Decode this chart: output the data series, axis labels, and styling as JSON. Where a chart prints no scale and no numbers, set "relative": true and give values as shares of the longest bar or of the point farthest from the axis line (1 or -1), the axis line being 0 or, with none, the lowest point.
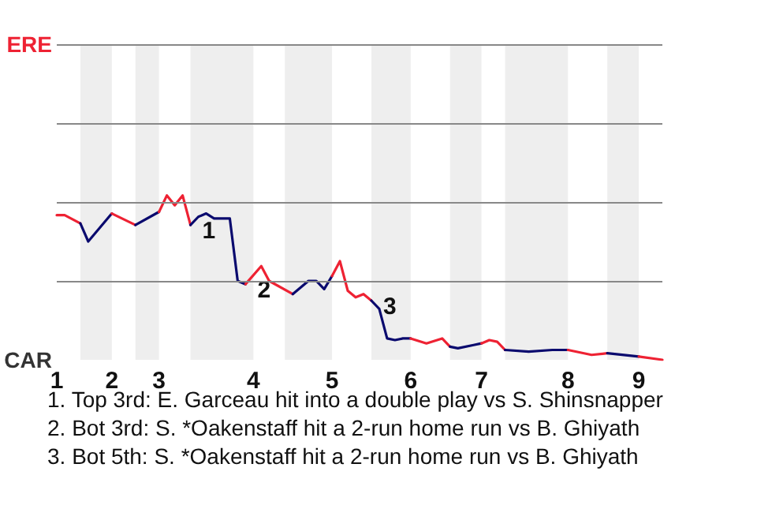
{
  "chart_data": {
    "type": "line",
    "relative": true,
    "categories": [
      "1",
      null,
      null,
      null,
      null,
      null,
      null,
      "2",
      null,
      null,
      null,
      null,
      null,
      "3",
      null,
      null,
      null,
      null,
      null,
      null,
      null,
      null,
      null,
      null,
      null,
      "4",
      null,
      null,
      null,
      null,
      null,
      null,
      null,
      null,
      null,
      "5",
      null,
      null,
      null,
      null,
      null,
      null,
      null,
      null,
      null,
      "6",
      null,
      null,
      null,
      null,
      null,
      null,
      null,
      null,
      "7",
      null,
      null,
      null,
      null,
      null,
      null,
      null,
      null,
      null,
      null,
      "8",
      null,
      null,
      null,
      null,
      null,
      null,
      null,
      null,
      "9",
      null,
      null,
      null
    ],
    "series": [
      {
        "color": "#ee2233",
        "values": [
          0.88,
          0.88,
          null,
          0.83,
          null,
          null,
          null,
          null,
          null,
          null,
          null,
          null,
          null,
          null,
          null,
          null,
          null,
          null,
          null,
          null,
          null,
          null,
          null,
          null,
          null,
          null,
          null,
          null,
          null,
          null,
          null,
          null,
          null,
          null,
          null,
          null,
          null,
          null,
          null,
          null,
          null,
          null,
          null,
          null,
          null,
          null,
          null,
          null,
          null,
          null,
          null,
          null,
          null,
          null,
          null,
          null,
          null,
          null,
          null,
          null,
          null,
          null,
          null,
          null,
          null,
          null,
          null,
          null,
          null,
          null,
          null,
          null,
          null,
          null,
          null,
          null,
          null,
          null
        ]
      },
      {
        "color": "#0a0a6e",
        "values": [
          null,
          null,
          null,
          0.83,
          0.72,
          null,
          null,
          0.89,
          null,
          null,
          null,
          null,
          null,
          null,
          null,
          null,
          null,
          null,
          null,
          null,
          null,
          null,
          null,
          null,
          null,
          null,
          null,
          null,
          null,
          null,
          null,
          null,
          null,
          null,
          null,
          null,
          null,
          null,
          null,
          null,
          null,
          null,
          null,
          null,
          null,
          null,
          null,
          null,
          null,
          null,
          null,
          null,
          null,
          null,
          null,
          null,
          null,
          null,
          null,
          null,
          null,
          null,
          null,
          null,
          null,
          null,
          null,
          null,
          null,
          null,
          null,
          null,
          null,
          null,
          null,
          null,
          null,
          null
        ]
      },
      {
        "color": "#ee2233",
        "values": [
          null,
          null,
          null,
          null,
          null,
          null,
          null,
          0.89,
          null,
          null,
          0.82,
          null,
          null,
          null,
          null,
          null,
          null,
          null,
          null,
          null,
          null,
          null,
          null,
          null,
          null,
          null,
          null,
          null,
          null,
          null,
          null,
          null,
          null,
          null,
          null,
          null,
          null,
          null,
          null,
          null,
          null,
          null,
          null,
          null,
          null,
          null,
          null,
          null,
          null,
          null,
          null,
          null,
          null,
          null,
          null,
          null,
          null,
          null,
          null,
          null,
          null,
          null,
          null,
          null,
          null,
          null,
          null,
          null,
          null,
          null,
          null,
          null,
          null,
          null,
          null,
          null,
          null,
          null
        ]
      },
      {
        "color": "#0a0a6e",
        "values": [
          null,
          null,
          null,
          null,
          null,
          null,
          null,
          null,
          null,
          null,
          0.82,
          null,
          null,
          0.9,
          null,
          null,
          null,
          null,
          null,
          null,
          null,
          null,
          null,
          null,
          null,
          null,
          null,
          null,
          null,
          null,
          null,
          null,
          null,
          null,
          null,
          null,
          null,
          null,
          null,
          null,
          null,
          null,
          null,
          null,
          null,
          null,
          null,
          null,
          null,
          null,
          null,
          null,
          null,
          null,
          null,
          null,
          null,
          null,
          null,
          null,
          null,
          null,
          null,
          null,
          null,
          null,
          null,
          null,
          null,
          null,
          null,
          null,
          null,
          null,
          null,
          null,
          null,
          null
        ]
      },
      {
        "color": "#ee2233",
        "values": [
          null,
          null,
          null,
          null,
          null,
          null,
          null,
          null,
          null,
          null,
          null,
          null,
          null,
          0.9,
          1,
          0.94,
          1,
          0.82,
          null,
          null,
          null,
          null,
          null,
          null,
          null,
          null,
          null,
          null,
          null,
          null,
          null,
          null,
          null,
          null,
          null,
          null,
          null,
          null,
          null,
          null,
          null,
          null,
          null,
          null,
          null,
          null,
          null,
          null,
          null,
          null,
          null,
          null,
          null,
          null,
          null,
          null,
          null,
          null,
          null,
          null,
          null,
          null,
          null,
          null,
          null,
          null,
          null,
          null,
          null,
          null,
          null,
          null,
          null,
          null,
          null,
          null,
          null,
          null
        ]
      },
      {
        "name": "1",
        "color": "#0a0a6e",
        "values": [
          null,
          null,
          null,
          null,
          null,
          null,
          null,
          null,
          null,
          null,
          null,
          null,
          null,
          null,
          null,
          null,
          null,
          0.82,
          0.87,
          0.89,
          0.86,
          null,
          0.86,
          0.48,
          0.46,
          null,
          null,
          null,
          null,
          null,
          null,
          null,
          null,
          null,
          null,
          null,
          null,
          null,
          null,
          null,
          null,
          null,
          null,
          null,
          null,
          null,
          null,
          null,
          null,
          null,
          null,
          null,
          null,
          null,
          null,
          null,
          null,
          null,
          null,
          null,
          null,
          null,
          null,
          null,
          null,
          null,
          null,
          null,
          null,
          null,
          null,
          null,
          null,
          null,
          null,
          null,
          null,
          null
        ]
      },
      {
        "name": "2",
        "color": "#ee2233",
        "values": [
          null,
          null,
          null,
          null,
          null,
          null,
          null,
          null,
          null,
          null,
          null,
          null,
          null,
          null,
          null,
          null,
          null,
          null,
          null,
          null,
          null,
          null,
          null,
          null,
          0.46,
          null,
          0.57,
          0.48,
          null,
          null,
          0.4,
          null,
          null,
          null,
          null,
          null,
          null,
          null,
          null,
          null,
          null,
          null,
          null,
          null,
          null,
          null,
          null,
          null,
          null,
          null,
          null,
          null,
          null,
          null,
          null,
          null,
          null,
          null,
          null,
          null,
          null,
          null,
          null,
          null,
          null,
          null,
          null,
          null,
          null,
          null,
          null,
          null,
          null,
          null,
          null,
          null,
          null,
          null
        ]
      },
      {
        "color": "#0a0a6e",
        "values": [
          null,
          null,
          null,
          null,
          null,
          null,
          null,
          null,
          null,
          null,
          null,
          null,
          null,
          null,
          null,
          null,
          null,
          null,
          null,
          null,
          null,
          null,
          null,
          null,
          null,
          null,
          null,
          null,
          null,
          null,
          0.4,
          null,
          0.48,
          0.48,
          0.43,
          0.51,
          null,
          null,
          null,
          null,
          null,
          null,
          null,
          null,
          null,
          null,
          null,
          null,
          null,
          null,
          null,
          null,
          null,
          null,
          null,
          null,
          null,
          null,
          null,
          null,
          null,
          null,
          null,
          null,
          null,
          null,
          null,
          null,
          null,
          null,
          null,
          null,
          null,
          null,
          null,
          null,
          null,
          null
        ]
      },
      {
        "color": "#ee2233",
        "values": [
          null,
          null,
          null,
          null,
          null,
          null,
          null,
          null,
          null,
          null,
          null,
          null,
          null,
          null,
          null,
          null,
          null,
          null,
          null,
          null,
          null,
          null,
          null,
          null,
          null,
          null,
          null,
          null,
          null,
          null,
          null,
          null,
          null,
          null,
          null,
          0.51,
          0.6,
          0.42,
          0.38,
          0.4,
          0.36,
          null,
          null,
          null,
          null,
          null,
          null,
          null,
          null,
          null,
          null,
          null,
          null,
          null,
          null,
          null,
          null,
          null,
          null,
          null,
          null,
          null,
          null,
          null,
          null,
          null,
          null,
          null,
          null,
          null,
          null,
          null,
          null,
          null,
          null,
          null,
          null,
          null
        ]
      },
      {
        "name": "3",
        "color": "#0a0a6e",
        "values": [
          null,
          null,
          null,
          null,
          null,
          null,
          null,
          null,
          null,
          null,
          null,
          null,
          null,
          null,
          null,
          null,
          null,
          null,
          null,
          null,
          null,
          null,
          null,
          null,
          null,
          null,
          null,
          null,
          null,
          null,
          null,
          null,
          null,
          null,
          null,
          null,
          null,
          null,
          null,
          null,
          0.36,
          0.31,
          0.13,
          0.12,
          0.13,
          0.13,
          null,
          null,
          null,
          null,
          null,
          null,
          null,
          null,
          null,
          null,
          null,
          null,
          null,
          null,
          null,
          null,
          null,
          null,
          null,
          null,
          null,
          null,
          null,
          null,
          null,
          null,
          null,
          null,
          null,
          null,
          null,
          null
        ]
      },
      {
        "color": "#ee2233",
        "values": [
          null,
          null,
          null,
          null,
          null,
          null,
          null,
          null,
          null,
          null,
          null,
          null,
          null,
          null,
          null,
          null,
          null,
          null,
          null,
          null,
          null,
          null,
          null,
          null,
          null,
          null,
          null,
          null,
          null,
          null,
          null,
          null,
          null,
          null,
          null,
          null,
          null,
          null,
          null,
          null,
          null,
          null,
          null,
          null,
          null,
          0.13,
          null,
          0.1,
          null,
          0.13,
          0.08,
          null,
          null,
          null,
          null,
          null,
          null,
          null,
          null,
          null,
          null,
          null,
          null,
          null,
          null,
          null,
          null,
          null,
          null,
          null,
          null,
          null,
          null,
          null,
          null,
          null,
          null,
          null
        ]
      },
      {
        "color": "#0a0a6e",
        "values": [
          null,
          null,
          null,
          null,
          null,
          null,
          null,
          null,
          null,
          null,
          null,
          null,
          null,
          null,
          null,
          null,
          null,
          null,
          null,
          null,
          null,
          null,
          null,
          null,
          null,
          null,
          null,
          null,
          null,
          null,
          null,
          null,
          null,
          null,
          null,
          null,
          null,
          null,
          null,
          null,
          null,
          null,
          null,
          null,
          null,
          null,
          null,
          null,
          null,
          null,
          0.08,
          0.07,
          null,
          0.09,
          0.1,
          null,
          null,
          null,
          null,
          null,
          null,
          null,
          null,
          null,
          null,
          null,
          null,
          null,
          null,
          null,
          null,
          null,
          null,
          null,
          null,
          null,
          null,
          null
        ]
      },
      {
        "color": "#ee2233",
        "values": [
          null,
          null,
          null,
          null,
          null,
          null,
          null,
          null,
          null,
          null,
          null,
          null,
          null,
          null,
          null,
          null,
          null,
          null,
          null,
          null,
          null,
          null,
          null,
          null,
          null,
          null,
          null,
          null,
          null,
          null,
          null,
          null,
          null,
          null,
          null,
          null,
          null,
          null,
          null,
          null,
          null,
          null,
          null,
          null,
          null,
          null,
          null,
          null,
          null,
          null,
          null,
          null,
          null,
          null,
          0.1,
          0.12,
          0.11,
          0.06,
          null,
          null,
          null,
          null,
          null,
          null,
          null,
          null,
          null,
          null,
          null,
          null,
          null,
          null,
          null,
          null,
          null,
          null,
          null,
          null
        ]
      },
      {
        "color": "#0a0a6e",
        "values": [
          null,
          null,
          null,
          null,
          null,
          null,
          null,
          null,
          null,
          null,
          null,
          null,
          null,
          null,
          null,
          null,
          null,
          null,
          null,
          null,
          null,
          null,
          null,
          null,
          null,
          null,
          null,
          null,
          null,
          null,
          null,
          null,
          null,
          null,
          null,
          null,
          null,
          null,
          null,
          null,
          null,
          null,
          null,
          null,
          null,
          null,
          null,
          null,
          null,
          null,
          null,
          null,
          null,
          null,
          null,
          null,
          null,
          0.06,
          null,
          null,
          0.05,
          null,
          null,
          0.06,
          null,
          0.06,
          null,
          null,
          null,
          null,
          null,
          null,
          null,
          null,
          null,
          null,
          null,
          null
        ]
      },
      {
        "color": "#ee2233",
        "values": [
          null,
          null,
          null,
          null,
          null,
          null,
          null,
          null,
          null,
          null,
          null,
          null,
          null,
          null,
          null,
          null,
          null,
          null,
          null,
          null,
          null,
          null,
          null,
          null,
          null,
          null,
          null,
          null,
          null,
          null,
          null,
          null,
          null,
          null,
          null,
          null,
          null,
          null,
          null,
          null,
          null,
          null,
          null,
          null,
          null,
          null,
          null,
          null,
          null,
          null,
          null,
          null,
          null,
          null,
          null,
          null,
          null,
          null,
          null,
          null,
          null,
          null,
          null,
          null,
          null,
          0.06,
          null,
          null,
          0.03,
          null,
          0.04,
          null,
          null,
          null,
          null,
          null,
          null,
          null
        ]
      },
      {
        "color": "#0a0a6e",
        "values": [
          null,
          null,
          null,
          null,
          null,
          null,
          null,
          null,
          null,
          null,
          null,
          null,
          null,
          null,
          null,
          null,
          null,
          null,
          null,
          null,
          null,
          null,
          null,
          null,
          null,
          null,
          null,
          null,
          null,
          null,
          null,
          null,
          null,
          null,
          null,
          null,
          null,
          null,
          null,
          null,
          null,
          null,
          null,
          null,
          null,
          null,
          null,
          null,
          null,
          null,
          null,
          null,
          null,
          null,
          null,
          null,
          null,
          null,
          null,
          null,
          null,
          null,
          null,
          null,
          null,
          null,
          null,
          null,
          null,
          null,
          0.04,
          null,
          null,
          null,
          0.02,
          null,
          null,
          null
        ]
      },
      {
        "color": "#ee2233",
        "values": [
          null,
          null,
          null,
          null,
          null,
          null,
          null,
          null,
          null,
          null,
          null,
          null,
          null,
          null,
          null,
          null,
          null,
          null,
          null,
          null,
          null,
          null,
          null,
          null,
          null,
          null,
          null,
          null,
          null,
          null,
          null,
          null,
          null,
          null,
          null,
          null,
          null,
          null,
          null,
          null,
          null,
          null,
          null,
          null,
          null,
          null,
          null,
          null,
          null,
          null,
          null,
          null,
          null,
          null,
          null,
          null,
          null,
          null,
          null,
          null,
          null,
          null,
          null,
          null,
          null,
          null,
          null,
          null,
          null,
          null,
          null,
          null,
          null,
          null,
          0.02,
          null,
          null,
          0
        ]
      }
    ],
    "ref_lines": [
      {
        "axis": "y",
        "value": 0.48,
        "color": "#888888"
      },
      {
        "axis": "y",
        "value": 0.96,
        "color": "#888888"
      },
      {
        "axis": "y",
        "value": 1.44,
        "color": "#888888"
      },
      {
        "axis": "y",
        "value": 1.92,
        "label": "ERE",
        "color": "#888888"
      }
    ],
    "ylabel": "CAR",
    "annotations": [
      "1. Top 3rd: E. Garceau hit into a double play vs S. Shinsnapper",
      "2. Bot 3rd: S. *Oakenstaff hit a 2-run home run vs B. Ghiyath",
      "3. Bot 5th: S. *Oakenstaff hit a 2-run home run vs B. Ghiyath"
    ]
  }
}
